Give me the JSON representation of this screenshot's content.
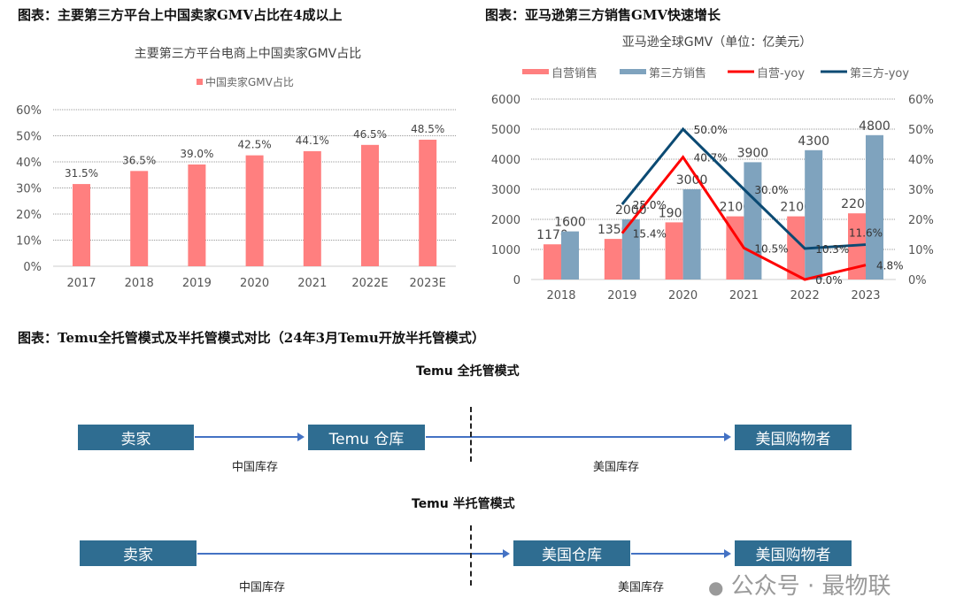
{
  "left_section_title": "图表：主要第三方平台上中国卖家GMV占比在4成以上",
  "right_section_title": "图表：亚马逊第三方销售GMV快速增长",
  "bottom_section_title": "图表：Temu全托管模式及半托管模式对比（24年3月Temu开放半托管模式）",
  "chart_data": [
    {
      "type": "bar",
      "title": "主要第三方平台电商上中国卖家GMV占比",
      "legend": [
        "中国卖家GMV占比"
      ],
      "legend_position": "top",
      "categories": [
        "2017",
        "2018",
        "2019",
        "2020",
        "2021",
        "2022E",
        "2023E"
      ],
      "values": [
        31.5,
        36.5,
        39.0,
        42.5,
        44.1,
        46.5,
        48.5
      ],
      "labels": [
        "31.5%",
        "36.5%",
        "39.0%",
        "42.5%",
        "44.1%",
        "46.5%",
        "48.5%"
      ],
      "ylim": [
        0,
        60
      ],
      "yticks": [
        "0%",
        "10%",
        "20%",
        "30%",
        "40%",
        "50%",
        "60%"
      ],
      "grid": true,
      "color": "#ff7f7f"
    },
    {
      "type": "bar+line",
      "title": "亚马逊全球GMV（单位：亿美元）",
      "legend_position": "top",
      "categories": [
        "2018",
        "2019",
        "2020",
        "2021",
        "2022",
        "2023"
      ],
      "series": [
        {
          "name": "自营销售",
          "type": "bar",
          "axis": "left",
          "color": "#ff7f7f",
          "values": [
            1170,
            1350,
            1900,
            2100,
            2100,
            2200
          ]
        },
        {
          "name": "第三方销售",
          "type": "bar",
          "axis": "left",
          "color": "#7fa3be",
          "values": [
            1600,
            2000,
            3000,
            3900,
            4300,
            4800
          ]
        },
        {
          "name": "自营-yoy",
          "type": "line",
          "axis": "right",
          "color": "#ff0000",
          "values": [
            null,
            15.4,
            40.7,
            10.5,
            0.0,
            4.8
          ],
          "labels": [
            null,
            "15.4%",
            "40.7%",
            "10.5%",
            "0.0%",
            "4.8%"
          ]
        },
        {
          "name": "第三方-yoy",
          "type": "line",
          "axis": "right",
          "color": "#0b4a73",
          "values": [
            null,
            25.0,
            50.0,
            30.0,
            10.3,
            11.6
          ],
          "labels": [
            null,
            "25.0%",
            "50.0%",
            "30.0%",
            "10.3%",
            "11.6%"
          ]
        }
      ],
      "ylim": [
        0,
        6000
      ],
      "yticks": [
        "0",
        "1000",
        "2000",
        "3000",
        "4000",
        "5000",
        "6000"
      ],
      "y2lim": [
        0,
        60
      ],
      "y2ticks": [
        "0%",
        "10%",
        "20%",
        "30%",
        "40%",
        "50%",
        "60%"
      ],
      "grid": true
    }
  ],
  "diagram": {
    "full": {
      "title": "Temu 全托管模式",
      "nodes": [
        "卖家",
        "Temu 仓库",
        "美国购物者"
      ],
      "segments": [
        "中国库存",
        "美国库存"
      ]
    },
    "semi": {
      "title": "Temu 半托管模式",
      "nodes": [
        "卖家",
        "美国仓库",
        "美国购物者"
      ],
      "segments": [
        "中国库存",
        "美国库存"
      ]
    },
    "box_color": "#2f6d91",
    "arrow_color": "#4472c4"
  },
  "watermark": "公众号 · 最物联"
}
